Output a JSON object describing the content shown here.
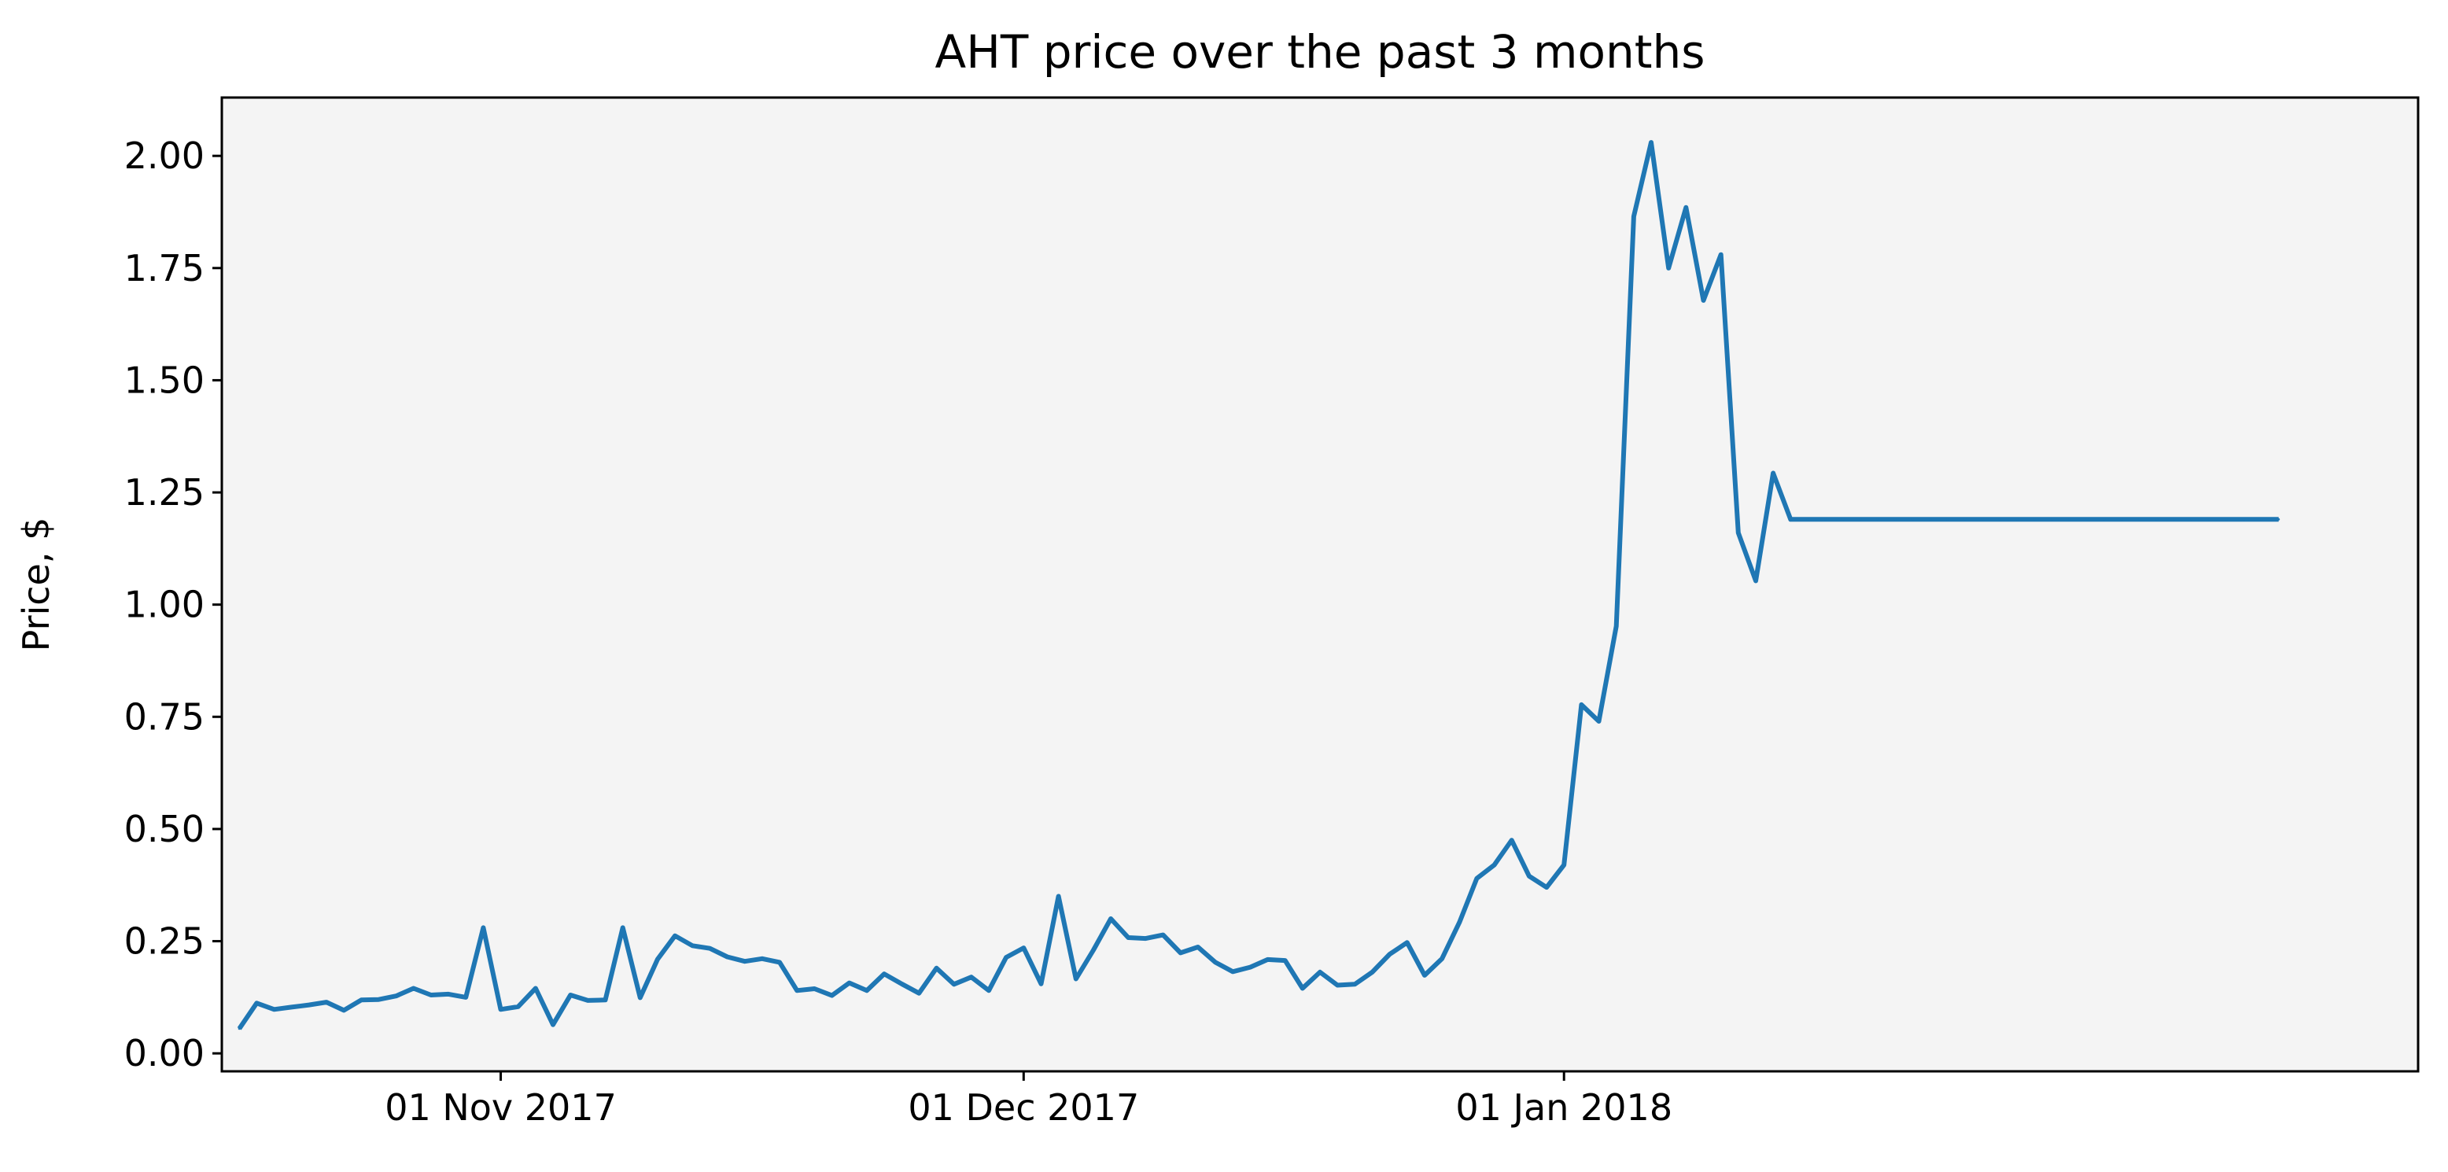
{
  "chart_data": {
    "type": "line",
    "title": "AHT price over the past 3 months",
    "xlabel": "",
    "ylabel": "Price, $",
    "x_axis_type": "date",
    "xlim": [
      "2017-10-16",
      "2018-02-19"
    ],
    "ylim": [
      -0.04,
      2.13
    ],
    "x_ticks": [
      {
        "date": "2017-11-01",
        "label": "01 Nov 2017"
      },
      {
        "date": "2017-12-01",
        "label": "01 Dec 2017"
      },
      {
        "date": "2018-01-01",
        "label": "01 Jan 2018"
      }
    ],
    "y_ticks": [
      {
        "value": 0.0,
        "label": "0.00"
      },
      {
        "value": 0.25,
        "label": "0.25"
      },
      {
        "value": 0.5,
        "label": "0.50"
      },
      {
        "value": 0.75,
        "label": "0.75"
      },
      {
        "value": 1.0,
        "label": "1.00"
      },
      {
        "value": 1.25,
        "label": "1.25"
      },
      {
        "value": 1.5,
        "label": "1.50"
      },
      {
        "value": 1.75,
        "label": "1.75"
      },
      {
        "value": 2.0,
        "label": "2.00"
      }
    ],
    "grid": false,
    "legend": null,
    "plot_background": "#f4f4f4",
    "series": [
      {
        "color": "#1f77b4",
        "x": [
          "2017-10-17",
          "2017-10-18",
          "2017-10-19",
          "2017-10-20",
          "2017-10-21",
          "2017-10-22",
          "2017-10-23",
          "2017-10-24",
          "2017-10-25",
          "2017-10-26",
          "2017-10-27",
          "2017-10-28",
          "2017-10-29",
          "2017-10-30",
          "2017-10-31",
          "2017-11-01",
          "2017-11-02",
          "2017-11-03",
          "2017-11-04",
          "2017-11-05",
          "2017-11-06",
          "2017-11-07",
          "2017-11-08",
          "2017-11-09",
          "2017-11-10",
          "2017-11-11",
          "2017-11-12",
          "2017-11-13",
          "2017-11-14",
          "2017-11-15",
          "2017-11-16",
          "2017-11-17",
          "2017-11-18",
          "2017-11-19",
          "2017-11-20",
          "2017-11-21",
          "2017-11-22",
          "2017-11-23",
          "2017-11-24",
          "2017-11-25",
          "2017-11-26",
          "2017-11-27",
          "2017-11-28",
          "2017-11-29",
          "2017-11-30",
          "2017-12-01",
          "2017-12-02",
          "2017-12-03",
          "2017-12-04",
          "2017-12-05",
          "2017-12-06",
          "2017-12-07",
          "2017-12-08",
          "2017-12-09",
          "2017-12-10",
          "2017-12-11",
          "2017-12-12",
          "2017-12-13",
          "2017-12-14",
          "2017-12-15",
          "2017-12-16",
          "2017-12-17",
          "2017-12-18",
          "2017-12-19",
          "2017-12-20",
          "2017-12-21",
          "2017-12-22",
          "2017-12-23",
          "2017-12-24",
          "2017-12-25",
          "2017-12-26",
          "2017-12-27",
          "2017-12-28",
          "2017-12-29",
          "2017-12-30",
          "2017-12-31",
          "2018-01-01",
          "2018-01-02",
          "2018-01-03",
          "2018-01-04",
          "2018-01-05",
          "2018-01-06",
          "2018-01-07",
          "2018-01-08",
          "2018-01-09",
          "2018-01-10",
          "2018-01-11",
          "2018-01-12",
          "2018-01-13",
          "2018-01-14",
          "2018-01-15",
          "2018-01-16",
          "2018-01-17",
          "2018-01-18",
          "2018-01-19",
          "2018-01-20",
          "2018-01-21",
          "2018-01-22",
          "2018-01-23",
          "2018-01-24",
          "2018-01-25",
          "2018-01-26",
          "2018-01-27",
          "2018-01-28",
          "2018-01-29",
          "2018-01-30",
          "2018-01-31",
          "2018-02-01",
          "2018-02-02",
          "2018-02-03",
          "2018-02-04",
          "2018-02-05",
          "2018-02-06",
          "2018-02-07",
          "2018-02-08",
          "2018-02-09",
          "2018-02-10",
          "2018-02-11"
        ],
        "y": [
          0.055,
          0.112,
          0.098,
          0.103,
          0.108,
          0.114,
          0.096,
          0.119,
          0.12,
          0.128,
          0.145,
          0.13,
          0.132,
          0.125,
          0.28,
          0.098,
          0.104,
          0.145,
          0.064,
          0.13,
          0.118,
          0.119,
          0.28,
          0.124,
          0.21,
          0.262,
          0.24,
          0.234,
          0.215,
          0.205,
          0.211,
          0.203,
          0.14,
          0.144,
          0.129,
          0.157,
          0.14,
          0.177,
          0.155,
          0.134,
          0.19,
          0.154,
          0.17,
          0.14,
          0.214,
          0.235,
          0.155,
          0.35,
          0.166,
          0.23,
          0.3,
          0.258,
          0.256,
          0.264,
          0.224,
          0.237,
          0.203,
          0.182,
          0.192,
          0.209,
          0.207,
          0.145,
          0.181,
          0.152,
          0.154,
          0.181,
          0.221,
          0.247,
          0.174,
          0.211,
          0.292,
          0.39,
          0.42,
          0.475,
          0.395,
          0.37,
          0.42,
          0.777,
          0.74,
          0.952,
          1.865,
          2.03,
          1.75,
          1.885,
          1.678,
          1.78,
          1.16,
          1.053,
          1.293,
          1.19,
          1.19,
          1.19,
          1.19,
          1.19,
          1.19,
          1.19,
          1.19,
          1.19,
          1.19,
          1.19,
          1.19,
          1.19,
          1.19,
          1.19,
          1.19,
          1.19,
          1.19,
          1.19,
          1.19,
          1.19,
          1.19,
          1.19,
          1.19,
          1.19,
          1.19,
          1.19,
          1.19,
          1.19
        ]
      }
    ]
  }
}
